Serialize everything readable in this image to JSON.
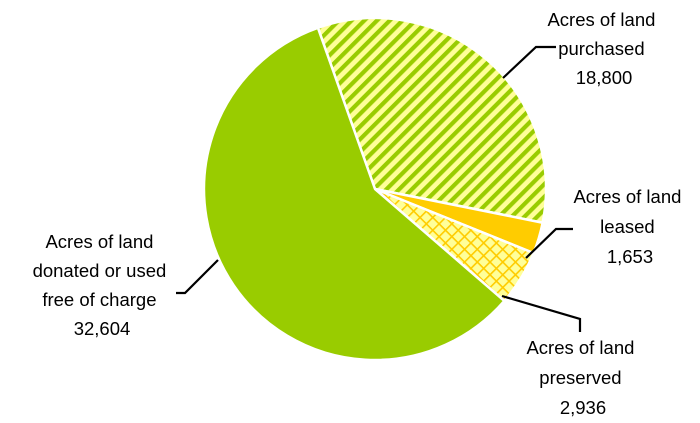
{
  "chart_data": {
    "type": "pie",
    "title": "",
    "slices": [
      {
        "label": "Acres of land purchased",
        "value": 18800,
        "value_text": "18,800",
        "fill": "hatch-diagonal",
        "color": "#99cc00",
        "background": "#ffff99"
      },
      {
        "label": "Acres of land leased",
        "value": 1653,
        "value_text": "1,653",
        "fill": "solid",
        "color": "#ffcc00"
      },
      {
        "label": "Acres of land preserved",
        "value": 2936,
        "value_text": "2,936",
        "fill": "hatch-cross",
        "color": "#ffcc00",
        "background": "#ffff99"
      },
      {
        "label": "Acres of land donated or used free of charge",
        "value": 32604,
        "value_text": "32,604",
        "fill": "solid",
        "color": "#99cc00"
      }
    ],
    "legend": "none",
    "data_labels": "outside-with-leader-lines"
  },
  "labels": {
    "purchased": {
      "lines": [
        "Acres of land",
        "purchased",
        "18,800"
      ]
    },
    "leased": {
      "lines": [
        "Acres of land",
        "leased",
        "1,653"
      ]
    },
    "preserved": {
      "lines": [
        "Acres of land",
        "preserved",
        "2,936"
      ]
    },
    "donated": {
      "lines": [
        "Acres of land",
        "donated or used",
        "free of charge",
        "32,604"
      ]
    }
  }
}
